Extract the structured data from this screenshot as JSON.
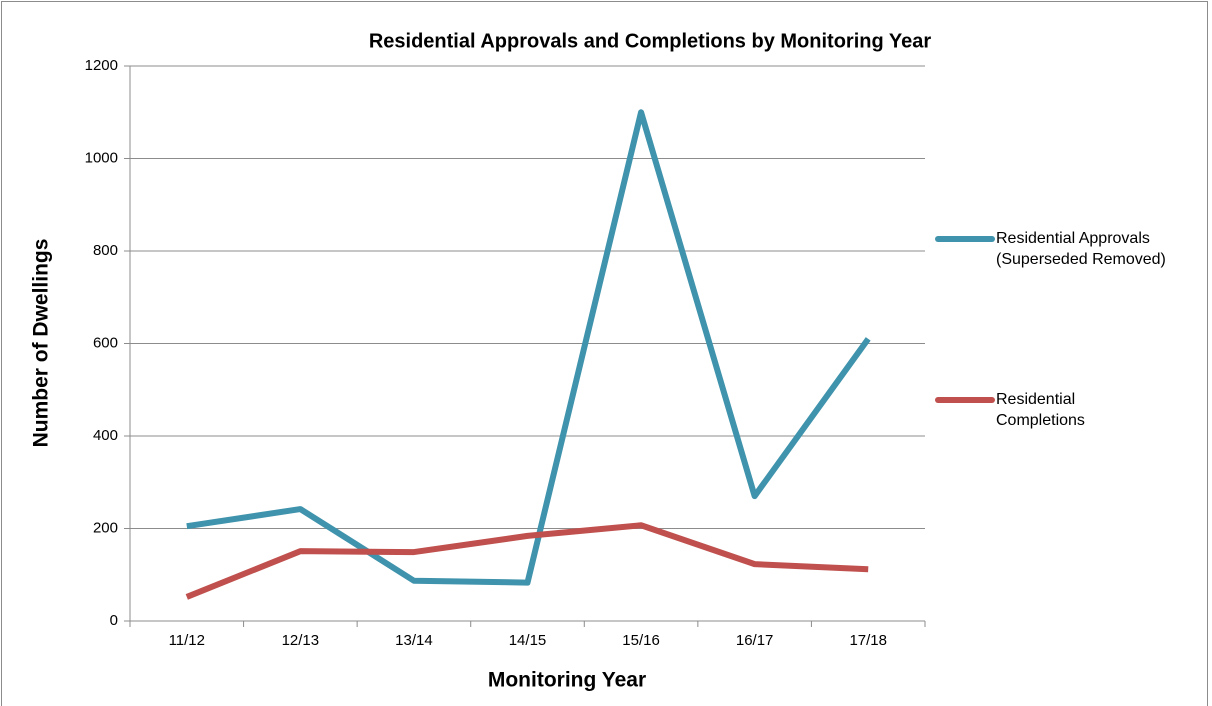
{
  "chart_data": {
    "type": "line",
    "title": "Residential Approvals and Completions by Monitoring Year",
    "x_label": "Monitoring Year",
    "y_label": "Number of Dwellings",
    "categories": [
      "11/12",
      "12/13",
      "13/14",
      "14/15",
      "15/16",
      "16/17",
      "17/18"
    ],
    "series": [
      {
        "name": "Residential Approvals (Superseded Removed)",
        "color": "#3f93ac",
        "values": [
          205,
          242,
          87,
          83,
          1100,
          270,
          610
        ]
      },
      {
        "name": "Residential Completions",
        "color": "#c0504d",
        "values": [
          52,
          151,
          149,
          184,
          207,
          123,
          112
        ]
      }
    ],
    "ylim": [
      0,
      1200
    ],
    "yticks": [
      0,
      200,
      400,
      600,
      800,
      1000,
      1200
    ],
    "grid": true,
    "legend": "right"
  }
}
